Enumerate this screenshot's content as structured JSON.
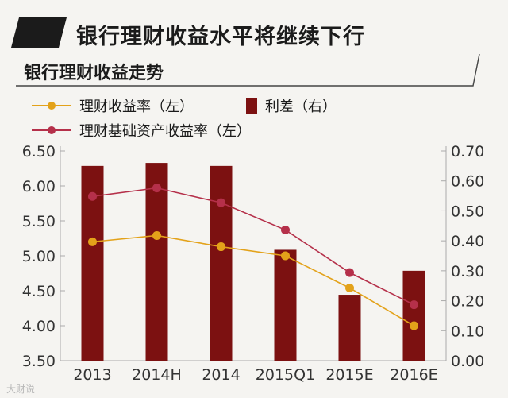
{
  "headline": "银行理财收益水平将继续下行",
  "colors": {
    "wealth_line": "#e3a21a",
    "asset_line": "#b5304a",
    "spread_bar": "#7c1111",
    "axis": "#aaaaaa",
    "text": "#1b1b1b"
  },
  "chart_data": {
    "type": "bar+line",
    "title": "银行理财收益走势",
    "categories": [
      "2013",
      "2014H",
      "2014",
      "2015Q1",
      "2015E",
      "2016E"
    ],
    "left_axis": {
      "min": 3.5,
      "max": 6.5,
      "ticks": [
        "3.50",
        "4.00",
        "4.50",
        "5.00",
        "5.50",
        "6.00",
        "6.50"
      ]
    },
    "right_axis": {
      "min": 0.0,
      "max": 0.7,
      "ticks": [
        "0.00",
        "0.10",
        "0.20",
        "0.30",
        "0.40",
        "0.50",
        "0.60",
        "0.70"
      ]
    },
    "series": [
      {
        "name": "理财收益率（左）",
        "kind": "line",
        "axis": "left",
        "values": [
          5.2,
          5.29,
          5.13,
          5.0,
          4.54,
          4.0
        ]
      },
      {
        "name": "利差（右）",
        "kind": "bar",
        "axis": "right",
        "values": [
          0.65,
          0.66,
          0.65,
          0.37,
          0.22,
          0.3
        ]
      },
      {
        "name": "理财基础资产收益率（左）",
        "kind": "line",
        "axis": "left",
        "values": [
          5.85,
          5.97,
          5.76,
          5.37,
          4.76,
          4.3
        ]
      }
    ],
    "legend_position": "top-left",
    "grid": false
  },
  "watermark": "大财说"
}
